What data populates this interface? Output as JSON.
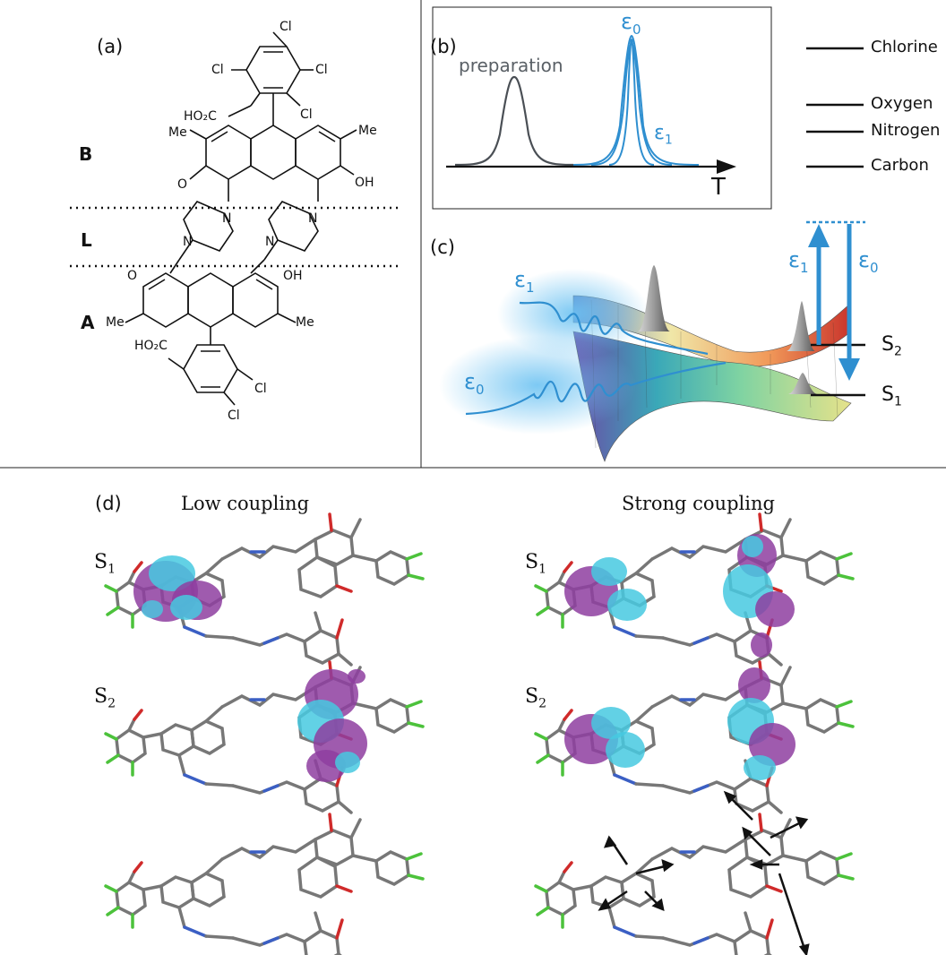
{
  "panel_a": {
    "label": "(a)",
    "regions": {
      "b": "B",
      "l": "L",
      "a": "A"
    },
    "atoms": {
      "cl1": "Cl",
      "cl2": "Cl",
      "cl3": "Cl",
      "cl4": "Cl",
      "ho2c_top": "HO₂C",
      "me1": "Me",
      "me2": "Me",
      "o_top": "O",
      "oh_top": "OH",
      "n1": "N",
      "n2": "N",
      "n3": "N",
      "n4": "N",
      "o_bot": "O",
      "oh_bot": "OH",
      "me3": "Me",
      "me4": "Me",
      "ho2c_bot": "HO₂C",
      "cl5": "Cl",
      "cl6": "Cl"
    }
  },
  "panel_b": {
    "label": "(b)",
    "preparation": "preparation",
    "eps0": "ε",
    "eps0_sub": "0",
    "eps1": "ε",
    "eps1_sub": "1",
    "axis": "T"
  },
  "legend": {
    "items": [
      "Chlorine",
      "Oxygen",
      "Nitrogen",
      "Carbon"
    ]
  },
  "panel_c": {
    "label": "(c)",
    "eps1": "ε",
    "eps1_sub": "1",
    "eps0": "ε",
    "eps0_sub": "0",
    "arrow_eps1": "ε",
    "arrow_eps1_sub": "1",
    "arrow_eps0": "ε",
    "arrow_eps0_sub": "0",
    "s2": "S",
    "s2_sub": "2",
    "s1": "S",
    "s1_sub": "1"
  },
  "panel_d": {
    "label": "(d)",
    "low_title": "Low coupling",
    "strong_title": "Strong coupling",
    "s1": "S",
    "s1_sub": "1",
    "s2": "S",
    "s2_sub": "2"
  },
  "colors": {
    "blue": "#2f8fd0",
    "gray_peak": "#4a4f55",
    "cyan": "#47c9e0",
    "purple": "#8e3ea0",
    "chlorine": "#4cc23b",
    "oxygen": "#d02a2a",
    "nitrogen": "#3b5fc4",
    "bond": "#555555"
  }
}
